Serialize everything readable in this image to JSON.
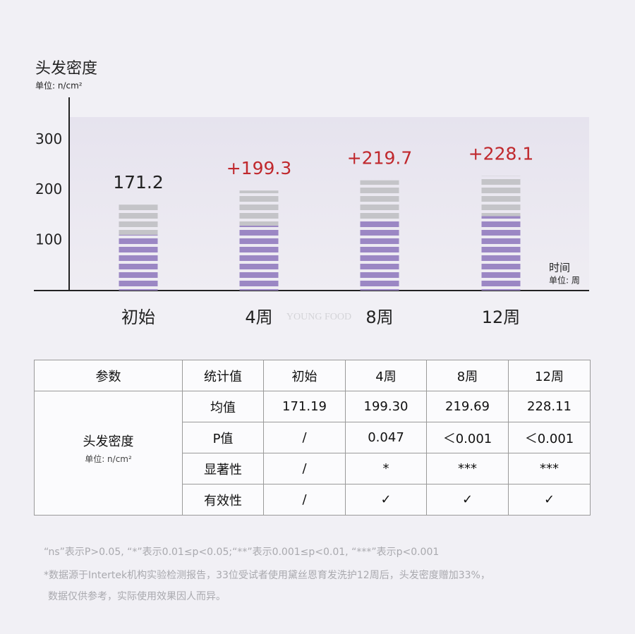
{
  "chart_data": {
    "type": "bar",
    "title": "头发密度",
    "subtitle": "单位: n/cm²",
    "x_label": "时间",
    "x_unit": "单位: 周",
    "categories": [
      "初始",
      "4周",
      "8周",
      "12周"
    ],
    "values": [
      171.2,
      199.3,
      219.7,
      228.1
    ],
    "value_labels": [
      "171.2",
      "+199.3",
      "+219.7",
      "+228.1"
    ],
    "color": "#9b87c4",
    "top_color": "#c4c4c8",
    "ylim": [
      0,
      385
    ],
    "yticks": [
      100,
      200,
      300
    ],
    "watermark": "YOUNG FOOD"
  },
  "table": {
    "header": [
      "参数",
      "统计值",
      "初始",
      "4周",
      "8周",
      "12周"
    ],
    "group": {
      "label": "头发密度",
      "unit": "单位: n/cm²"
    },
    "rows": [
      [
        "均值",
        "171.19",
        "199.30",
        "219.69",
        "228.11"
      ],
      [
        "P值",
        "/",
        "0.047",
        "＜0.001",
        "＜0.001"
      ],
      [
        "显著性",
        "/",
        "*",
        "***",
        "***"
      ],
      [
        "有效性",
        "/",
        "✓",
        "✓",
        "✓"
      ]
    ]
  },
  "notes": [
    "“ns”表示P>0.05, “*”表示0.01≤p<0.05;“**”表示0.001≤p<0.01, “***”表示p<0.001",
    "*数据源于Intertek机构实验检测报告，33位受试者使用黛丝恩育发洗护12周后，头发密度赠加33%，",
    "数据仅供参考，实际使用效果因人而异。"
  ]
}
